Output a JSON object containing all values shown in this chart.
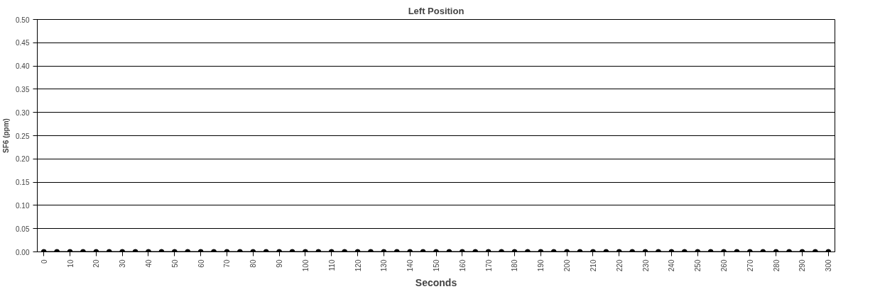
{
  "chart_data": {
    "type": "line",
    "title": "Left Position",
    "xlabel": "Seconds",
    "ylabel": "SF6 (ppm)",
    "x": [
      0,
      5,
      10,
      15,
      20,
      25,
      30,
      35,
      40,
      45,
      50,
      55,
      60,
      65,
      70,
      75,
      80,
      85,
      90,
      95,
      100,
      105,
      110,
      115,
      120,
      125,
      130,
      135,
      140,
      145,
      150,
      155,
      160,
      165,
      170,
      175,
      180,
      185,
      190,
      195,
      200,
      205,
      210,
      215,
      220,
      225,
      230,
      235,
      240,
      245,
      250,
      255,
      260,
      265,
      270,
      275,
      280,
      285,
      290,
      295,
      300
    ],
    "series": [
      {
        "color": "#000000",
        "values": [
          0,
          0,
          0,
          0,
          0,
          0,
          0,
          0,
          0,
          0,
          0,
          0,
          0,
          0,
          0,
          0,
          0,
          0,
          0,
          0,
          0,
          0,
          0,
          0,
          0,
          0,
          0,
          0,
          0,
          0,
          0,
          0,
          0,
          0,
          0,
          0,
          0,
          0,
          0,
          0,
          0,
          0,
          0,
          0,
          0,
          0,
          0,
          0,
          0,
          0,
          0,
          0,
          0,
          0,
          0,
          0,
          0,
          0,
          0,
          0,
          0
        ]
      }
    ],
    "xlim": [
      -2.5,
      302.5
    ],
    "xticks": [
      0,
      10,
      20,
      30,
      40,
      50,
      60,
      70,
      80,
      90,
      100,
      110,
      120,
      130,
      140,
      150,
      160,
      170,
      180,
      190,
      200,
      210,
      220,
      230,
      240,
      250,
      260,
      270,
      280,
      290,
      300
    ],
    "ylim": [
      0,
      0.5
    ],
    "yticks": [
      {
        "value": 0,
        "label": "0.00"
      },
      {
        "value": 0.05,
        "label": "0.05"
      },
      {
        "value": 0.1,
        "label": "0.10"
      },
      {
        "value": 0.15,
        "label": "0.15"
      },
      {
        "value": 0.2,
        "label": "0.20"
      },
      {
        "value": 0.25,
        "label": "0.25"
      },
      {
        "value": 0.3,
        "label": "0.30"
      },
      {
        "value": 0.35,
        "label": "0.35"
      },
      {
        "value": 0.4,
        "label": "0.40"
      },
      {
        "value": 0.45,
        "label": "0.45"
      },
      {
        "value": 0.5,
        "label": "0.50"
      }
    ],
    "grid": "y",
    "marker": "circle",
    "line_style": "solid"
  }
}
